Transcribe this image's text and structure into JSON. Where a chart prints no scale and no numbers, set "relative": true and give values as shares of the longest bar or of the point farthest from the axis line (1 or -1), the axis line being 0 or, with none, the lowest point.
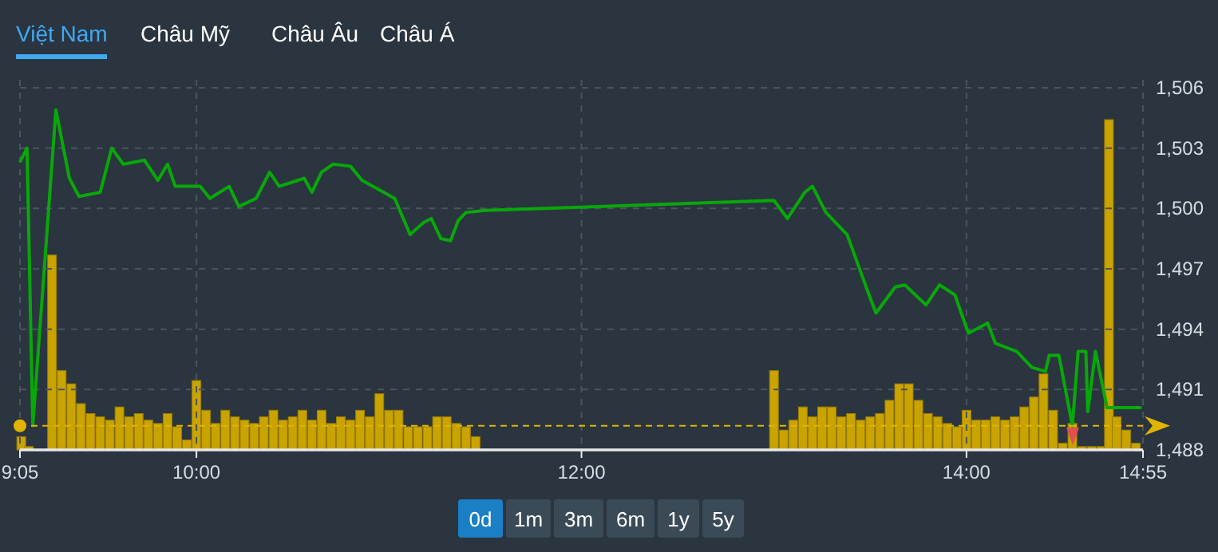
{
  "chart_data": [
    {
      "type": "line",
      "color": "#08a808",
      "grid": true,
      "line_style": "solid",
      "marker": "none",
      "x": [
        9.0833,
        9.12,
        9.15,
        9.27,
        9.34,
        9.39,
        9.5,
        9.56,
        9.62,
        9.73,
        9.8,
        9.85,
        9.89,
        10.02,
        10.07,
        10.17,
        10.22,
        10.31,
        10.38,
        10.43,
        10.56,
        10.6,
        10.65,
        10.71,
        10.8,
        10.86,
        11.03,
        11.11,
        11.18,
        11.22,
        11.27,
        11.32,
        11.36,
        11.4,
        11.5,
        13.0,
        13.07,
        13.16,
        13.2,
        13.27,
        13.38,
        13.49,
        13.53,
        13.63,
        13.68,
        13.79,
        13.86,
        13.94,
        14.01,
        14.11,
        14.15,
        14.26,
        14.34,
        14.41,
        14.43,
        14.48,
        14.55,
        14.58,
        14.62,
        14.63,
        14.67,
        14.73,
        14.91
      ],
      "values": [
        1502.3,
        1503.0,
        1489.2,
        1504.9,
        1501.5,
        1500.6,
        1500.8,
        1503.0,
        1502.2,
        1502.4,
        1501.4,
        1502.2,
        1501.1,
        1501.1,
        1500.5,
        1501.1,
        1500.1,
        1500.5,
        1501.8,
        1501.1,
        1501.5,
        1500.8,
        1501.8,
        1502.2,
        1502.1,
        1501.4,
        1500.5,
        1498.7,
        1499.3,
        1499.5,
        1498.5,
        1498.4,
        1499.4,
        1499.8,
        1499.9,
        1500.4,
        1499.5,
        1500.8,
        1501.1,
        1499.8,
        1498.7,
        1495.8,
        1494.8,
        1496.1,
        1496.2,
        1495.2,
        1496.2,
        1495.7,
        1493.8,
        1494.3,
        1493.3,
        1492.9,
        1492.1,
        1491.9,
        1492.7,
        1492.7,
        1489.2,
        1492.9,
        1492.9,
        1489.9,
        1492.9,
        1490.1,
        1490.1
      ],
      "xlim": [
        9.0833,
        14.9167
      ],
      "xticks": [
        {
          "value": 9.0833,
          "label": "9:05"
        },
        {
          "value": 10,
          "label": "10:00"
        },
        {
          "value": 12,
          "label": "12:00"
        },
        {
          "value": 14,
          "label": "14:00"
        },
        {
          "value": 14.9167,
          "label": "14:55"
        }
      ],
      "ylim": [
        1488,
        1506
      ],
      "yticks": [
        {
          "value": 1488,
          "label": "1,488"
        },
        {
          "value": 1491,
          "label": "1,491"
        },
        {
          "value": 1494,
          "label": "1,494"
        },
        {
          "value": 1497,
          "label": "1,497"
        },
        {
          "value": 1500,
          "label": "1,500"
        },
        {
          "value": 1503,
          "label": "1,503"
        },
        {
          "value": 1506,
          "label": "1,506"
        }
      ],
      "ref_lines": [
        {
          "axis": "y",
          "value": 1489.2,
          "color": "#e0b400",
          "line_style": "dashed"
        }
      ],
      "annotations": [
        "Việt Nam",
        "Châu Mỹ",
        "Châu Âu",
        "Châu Á",
        "0d",
        "1m",
        "3m",
        "6m",
        "1y",
        "5y"
      ]
    },
    {
      "type": "bar",
      "color": "#c9a300",
      "relative": true,
      "tick_labels": false,
      "xlim": [
        9.0833,
        14.9167
      ],
      "x": [
        9.09,
        9.13,
        9.25,
        9.3,
        9.35,
        9.4,
        9.45,
        9.5,
        9.55,
        9.6,
        9.65,
        9.7,
        9.75,
        9.8,
        9.85,
        9.9,
        9.95,
        10.0,
        10.05,
        10.1,
        10.15,
        10.2,
        10.25,
        10.3,
        10.35,
        10.4,
        10.45,
        10.5,
        10.55,
        10.6,
        10.65,
        10.7,
        10.75,
        10.8,
        10.85,
        10.9,
        10.95,
        11.0,
        11.05,
        11.1,
        11.15,
        11.2,
        11.25,
        11.3,
        11.35,
        11.4,
        11.45,
        13.0,
        13.05,
        13.1,
        13.15,
        13.2,
        13.25,
        13.3,
        13.35,
        13.4,
        13.45,
        13.5,
        13.55,
        13.6,
        13.65,
        13.7,
        13.75,
        13.8,
        13.85,
        13.9,
        13.95,
        14.0,
        14.05,
        14.1,
        14.15,
        14.2,
        14.25,
        14.3,
        14.35,
        14.4,
        14.45,
        14.5,
        14.55,
        14.6,
        14.65,
        14.7,
        14.74,
        14.78,
        14.83,
        14.88
      ],
      "values": [
        0.04,
        0.01,
        0.59,
        0.24,
        0.2,
        0.14,
        0.11,
        0.1,
        0.09,
        0.13,
        0.1,
        0.11,
        0.09,
        0.08,
        0.11,
        0.07,
        0.03,
        0.21,
        0.12,
        0.08,
        0.12,
        0.1,
        0.09,
        0.08,
        0.1,
        0.12,
        0.09,
        0.1,
        0.12,
        0.09,
        0.12,
        0.08,
        0.1,
        0.09,
        0.12,
        0.1,
        0.17,
        0.12,
        0.12,
        0.07,
        0.07,
        0.07,
        0.1,
        0.1,
        0.08,
        0.07,
        0.04,
        0.24,
        0.06,
        0.09,
        0.13,
        0.1,
        0.13,
        0.13,
        0.1,
        0.11,
        0.09,
        0.1,
        0.11,
        0.15,
        0.2,
        0.2,
        0.15,
        0.11,
        0.1,
        0.08,
        0.07,
        0.12,
        0.09,
        0.09,
        0.1,
        0.09,
        0.1,
        0.13,
        0.16,
        0.23,
        0.12,
        0.02,
        0.08,
        0.01,
        0.01,
        0.01,
        1.0,
        0.1,
        0.06,
        0.02
      ]
    }
  ]
}
